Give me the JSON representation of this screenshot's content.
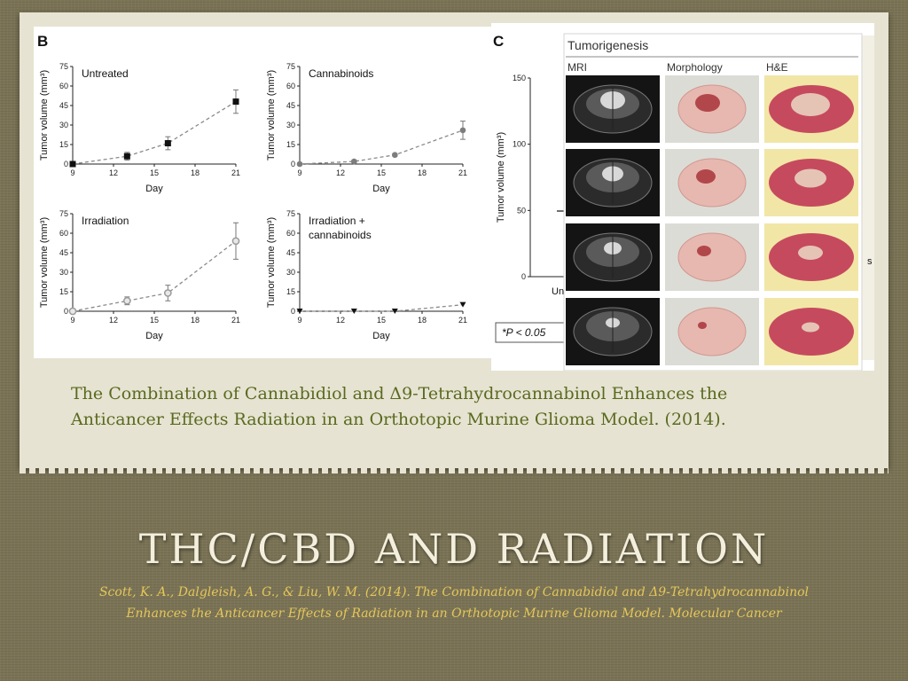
{
  "caption": {
    "line1": "The Combination of Cannabidiol and Δ9-Tetrahydrocannabinol Enhances the",
    "line2": "Anticancer Effects Radiation in an Orthotopic Murine Glioma Model. (2014)."
  },
  "slide_title": "THC/CBD AND RADIATION",
  "citation": {
    "line1": "Scott, K. A., Dalgleish, A. G., & Liu, W. M. (2014). The Combination of Cannabidiol and Δ9-Tetrahydrocannabinol",
    "line2": "Enhances the Anticancer Effects of Radiation in an Orthotopic Murine Glioma Model. Molecular Cancer"
  },
  "panel_c": {
    "label": "C",
    "inset_title": "Tumorigenesis",
    "columns": [
      "MRI",
      "Morphology",
      "H&E"
    ],
    "stat_note": "*P < 0.05",
    "axis_fragment": "Un",
    "right_fragment": "s"
  },
  "colors": {
    "background": "#7a7355",
    "paper": "#e6e3d2",
    "caption_text": "#5a6a1f",
    "title_text": "#f3efdc",
    "citation_text": "#e6c75a"
  },
  "chart_data": [
    {
      "type": "line",
      "panel_label": "B",
      "title": "Untreated",
      "xlabel": "Day",
      "ylabel": "Tumor volume (mm³)",
      "xlim": [
        9,
        21
      ],
      "ylim": [
        0,
        75
      ],
      "xticks": [
        9,
        12,
        15,
        18,
        21
      ],
      "yticks": [
        0,
        15,
        30,
        45,
        60,
        75
      ],
      "marker": "square",
      "marker_color": "#111111",
      "x": [
        9,
        13,
        16,
        21
      ],
      "y": [
        0,
        6,
        16,
        48
      ],
      "error": [
        0,
        3,
        5,
        9
      ]
    },
    {
      "type": "line",
      "title": "Cannabinoids",
      "xlabel": "Day",
      "ylabel": "Tumor volume (mm³)",
      "xlim": [
        9,
        21
      ],
      "ylim": [
        0,
        75
      ],
      "xticks": [
        9,
        12,
        15,
        18,
        21
      ],
      "yticks": [
        0,
        15,
        30,
        45,
        60,
        75
      ],
      "marker": "circle",
      "marker_color": "#7d7d7d",
      "x": [
        9,
        13,
        16,
        21
      ],
      "y": [
        0,
        2,
        7,
        26
      ],
      "error": [
        0,
        1,
        1,
        7
      ]
    },
    {
      "type": "line",
      "title": "Irradiation",
      "xlabel": "Day",
      "ylabel": "Tumor volume (mm³)",
      "xlim": [
        9,
        21
      ],
      "ylim": [
        0,
        75
      ],
      "xticks": [
        9,
        12,
        15,
        18,
        21
      ],
      "yticks": [
        0,
        15,
        30,
        45,
        60,
        75
      ],
      "marker": "circle-open",
      "marker_color": "#9a9a9a",
      "x": [
        9,
        13,
        16,
        21
      ],
      "y": [
        0,
        8,
        14,
        54
      ],
      "error": [
        0,
        3,
        6,
        14
      ]
    },
    {
      "type": "line",
      "title": "Irradiation +\ncannabinoids",
      "xlabel": "Day",
      "ylabel": "Tumor volume (mm³)",
      "xlim": [
        9,
        21
      ],
      "ylim": [
        0,
        75
      ],
      "xticks": [
        9,
        12,
        15,
        18,
        21
      ],
      "yticks": [
        0,
        15,
        30,
        45,
        60,
        75
      ],
      "marker": "triangle-down",
      "marker_color": "#111111",
      "x": [
        9,
        13,
        16,
        21
      ],
      "y": [
        0,
        0,
        0,
        5
      ],
      "error": [
        0,
        0,
        0,
        0
      ]
    },
    {
      "type": "bar",
      "panel_label": "C",
      "ylabel": "Tumor volume (mm³)",
      "ylim": [
        0,
        150
      ],
      "yticks": [
        0,
        50,
        100,
        150
      ]
    }
  ]
}
